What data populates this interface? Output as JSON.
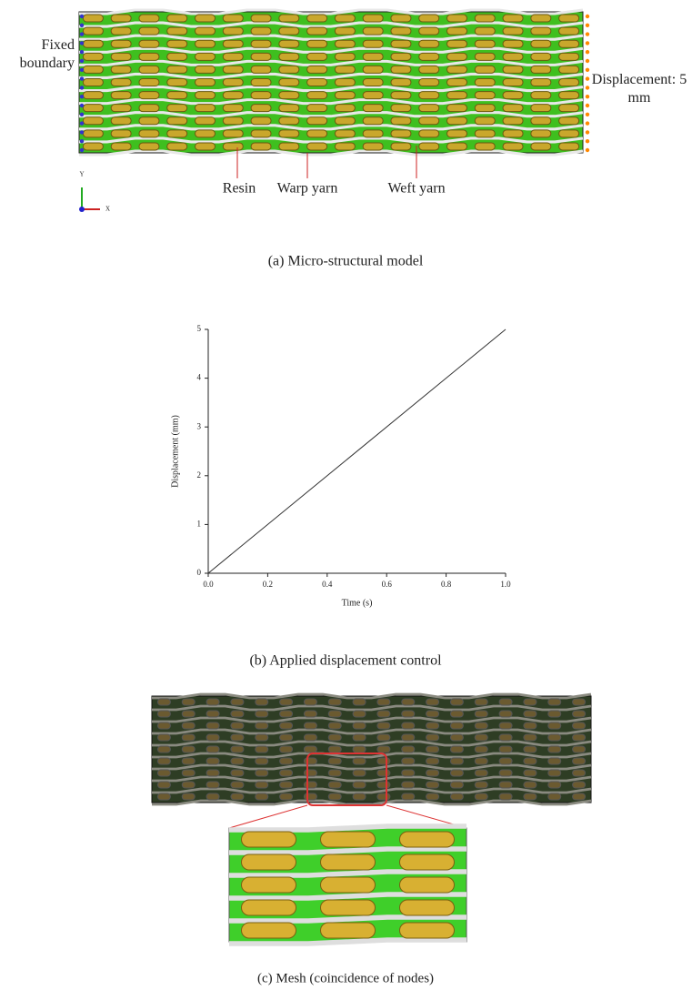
{
  "figure_a": {
    "left_label": "Fixed boundary",
    "right_label": "Displacement: 5 mm",
    "arrows": [
      "Resin",
      "Warp yarn",
      "Weft yarn"
    ],
    "axis_y": "Y",
    "axis_x": "X",
    "caption": "(a)  Micro-structural model"
  },
  "chart_data": {
    "type": "line",
    "x": [
      0,
      1
    ],
    "values": [
      0,
      5
    ],
    "color": "#333333",
    "xlabel": "Time (s)",
    "ylabel": "Displacement (mm)",
    "xlim": [
      0,
      1
    ],
    "xticks": [
      {
        "value": 0,
        "label": "0.0"
      },
      0.2,
      0.4,
      0.6,
      0.8,
      {
        "value": 1,
        "label": "1.0"
      }
    ],
    "ylim": [
      0,
      5
    ],
    "yticks": [
      0,
      1,
      2,
      3,
      4,
      5
    ],
    "caption": "(b)  Applied displacement control"
  },
  "figure_c": {
    "caption": "(c)  Mesh (coincidence of nodes)"
  }
}
